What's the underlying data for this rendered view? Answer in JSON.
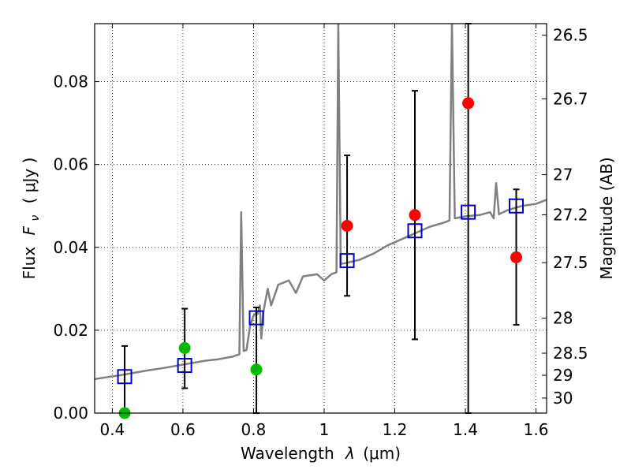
{
  "chart_data": {
    "type": "scatter",
    "xlabel_prefix": "Wavelength",
    "xlabel_symbol": "λ",
    "xlabel_unit": "(μm)",
    "ylabel_text": "Flux",
    "ylabel_symbol": "F",
    "ylabel_sub": "ν",
    "ylabel_unit": "( μJy )",
    "y2label": "Magnitude (AB)",
    "xlim": [
      0.35,
      1.63
    ],
    "ylim": [
      0.0,
      0.094
    ],
    "grid": true,
    "x_ticks": [
      {
        "value": 0.4,
        "label": "0.4"
      },
      {
        "value": 0.6,
        "label": "0.6"
      },
      {
        "value": 0.8,
        "label": "0.8"
      },
      {
        "value": 1.0,
        "label": "1"
      },
      {
        "value": 1.2,
        "label": "1.2"
      },
      {
        "value": 1.4,
        "label": "1.4"
      },
      {
        "value": 1.6,
        "label": "1.6"
      }
    ],
    "y_ticks": [
      {
        "value": 0.0,
        "label": "0.00"
      },
      {
        "value": 0.02,
        "label": "0.02"
      },
      {
        "value": 0.04,
        "label": "0.04"
      },
      {
        "value": 0.06,
        "label": "0.06"
      },
      {
        "value": 0.08,
        "label": "0.08"
      }
    ],
    "mag_ticks": [
      {
        "mag": 26.5,
        "label": "26.5"
      },
      {
        "mag": 26.7,
        "label": "26.7"
      },
      {
        "mag": 27.0,
        "label": "27"
      },
      {
        "mag": 27.2,
        "label": "27.2"
      },
      {
        "mag": 27.5,
        "label": "27.5"
      },
      {
        "mag": 28.0,
        "label": "28"
      },
      {
        "mag": 28.5,
        "label": "28.5"
      },
      {
        "mag": 29.0,
        "label": "29"
      },
      {
        "mag": 30.0,
        "label": "30"
      }
    ],
    "colors": {
      "template": "#808080",
      "model": "#0000cc",
      "detection": "#ff0000",
      "observed": "#00bb00",
      "errorbar": "#000000"
    },
    "template_spectrum": [
      [
        0.35,
        0.0082
      ],
      [
        0.38,
        0.0086
      ],
      [
        0.42,
        0.0091
      ],
      [
        0.46,
        0.0097
      ],
      [
        0.5,
        0.0103
      ],
      [
        0.54,
        0.0108
      ],
      [
        0.58,
        0.0114
      ],
      [
        0.62,
        0.012
      ],
      [
        0.66,
        0.0126
      ],
      [
        0.7,
        0.013
      ],
      [
        0.74,
        0.0136
      ],
      [
        0.76,
        0.0142
      ],
      [
        0.765,
        0.0485
      ],
      [
        0.772,
        0.015
      ],
      [
        0.78,
        0.0152
      ],
      [
        0.79,
        0.021
      ],
      [
        0.8,
        0.0235
      ],
      [
        0.805,
        0.024
      ],
      [
        0.812,
        0.024
      ],
      [
        0.818,
        0.026
      ],
      [
        0.822,
        0.018
      ],
      [
        0.828,
        0.0245
      ],
      [
        0.84,
        0.03
      ],
      [
        0.85,
        0.026
      ],
      [
        0.87,
        0.031
      ],
      [
        0.9,
        0.032
      ],
      [
        0.92,
        0.029
      ],
      [
        0.94,
        0.033
      ],
      [
        0.98,
        0.0335
      ],
      [
        1.0,
        0.032
      ],
      [
        1.02,
        0.0335
      ],
      [
        1.035,
        0.034
      ],
      [
        1.04,
        0.094
      ],
      [
        1.047,
        0.036
      ],
      [
        1.06,
        0.0362
      ],
      [
        1.1,
        0.037
      ],
      [
        1.14,
        0.0385
      ],
      [
        1.18,
        0.0405
      ],
      [
        1.22,
        0.042
      ],
      [
        1.26,
        0.0435
      ],
      [
        1.3,
        0.045
      ],
      [
        1.34,
        0.046
      ],
      [
        1.355,
        0.0465
      ],
      [
        1.362,
        0.094
      ],
      [
        1.37,
        0.047
      ],
      [
        1.4,
        0.0475
      ],
      [
        1.44,
        0.0478
      ],
      [
        1.47,
        0.0485
      ],
      [
        1.48,
        0.047
      ],
      [
        1.487,
        0.0555
      ],
      [
        1.495,
        0.048
      ],
      [
        1.52,
        0.049
      ],
      [
        1.56,
        0.05
      ],
      [
        1.6,
        0.0505
      ],
      [
        1.63,
        0.0515
      ]
    ],
    "model_points": [
      {
        "x": 0.435,
        "y": 0.0088
      },
      {
        "x": 0.605,
        "y": 0.0115
      },
      {
        "x": 0.808,
        "y": 0.023
      },
      {
        "x": 1.065,
        "y": 0.0368
      },
      {
        "x": 1.257,
        "y": 0.044
      },
      {
        "x": 1.408,
        "y": 0.0485
      },
      {
        "x": 1.544,
        "y": 0.05
      }
    ],
    "detections_red": [
      {
        "x": 1.065,
        "y": 0.0452
      },
      {
        "x": 1.257,
        "y": 0.0478
      },
      {
        "x": 1.408,
        "y": 0.0748
      },
      {
        "x": 1.544,
        "y": 0.0376
      }
    ],
    "observed_green": [
      {
        "x": 0.435,
        "y": 0.0
      },
      {
        "x": 0.605,
        "y": 0.0157
      },
      {
        "x": 0.808,
        "y": 0.0105
      }
    ],
    "error_bars": [
      {
        "x": 0.435,
        "low": 0.0,
        "high": 0.0162
      },
      {
        "x": 0.605,
        "low": 0.006,
        "high": 0.0252
      },
      {
        "x": 0.808,
        "low": 0.0,
        "high": 0.0255
      },
      {
        "x": 1.065,
        "low": 0.0283,
        "high": 0.0622
      },
      {
        "x": 1.257,
        "low": 0.0178,
        "high": 0.0778
      },
      {
        "x": 1.408,
        "low": 0.0,
        "high": 0.094
      },
      {
        "x": 1.544,
        "low": 0.0213,
        "high": 0.054
      }
    ]
  }
}
